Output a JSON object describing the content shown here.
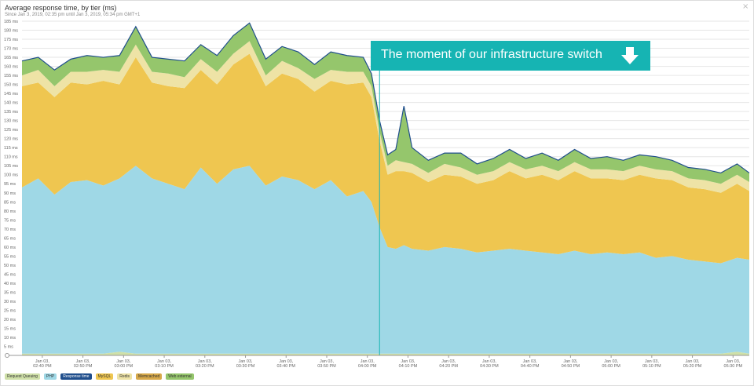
{
  "header": {
    "title": "Average response time, by tier (ms)",
    "subtitle": "Since Jan 3, 2019, 02:35 pm until Jan 3, 2019, 05:34 pm GMT+1",
    "close_glyph": "×"
  },
  "annotation": {
    "text": "The moment of our infrastructure switch",
    "arrow_icon": "arrow-down-icon",
    "color": "#16b4b3"
  },
  "colors": {
    "request_queuing": "#cfe0a8",
    "php": "#9fd8e6",
    "mysql": "#efc650",
    "redis": "#eee3a6",
    "web_external": "#95c66c",
    "response_line": "#1f4e8c",
    "switch_line": "#16b4b3"
  },
  "legend": [
    {
      "label": "Request Queuing",
      "color": "#cfe0a8"
    },
    {
      "label": "PHP",
      "color": "#9fd8e6"
    },
    {
      "label": "Response time",
      "color": "#1f4e8c"
    },
    {
      "label": "MySQL",
      "color": "#efc650"
    },
    {
      "label": "Redis",
      "color": "#eee3a6"
    },
    {
      "label": "Memcached",
      "color": "#d7a94a"
    },
    {
      "label": "Web external",
      "color": "#95c66c"
    }
  ],
  "chart_data": {
    "type": "area",
    "title": "Average response time, by tier (ms)",
    "ylim": [
      0,
      185
    ],
    "y_ticks": [
      "5 ms",
      "10 ms",
      "15 ms",
      "20 ms",
      "25 ms",
      "30 ms",
      "35 ms",
      "40 ms",
      "45 ms",
      "50 ms",
      "55 ms",
      "60 ms",
      "65 ms",
      "70 ms",
      "75 ms",
      "80 ms",
      "85 ms",
      "90 ms",
      "95 ms",
      "100 ms",
      "105 ms",
      "110 ms",
      "115 ms",
      "120 ms",
      "125 ms",
      "130 ms",
      "135 ms",
      "140 ms",
      "145 ms",
      "150 ms",
      "155 ms",
      "160 ms",
      "165 ms",
      "170 ms",
      "175 ms",
      "180 ms",
      "185 ms"
    ],
    "y_tick_values": [
      5,
      10,
      15,
      20,
      25,
      30,
      35,
      40,
      45,
      50,
      55,
      60,
      65,
      70,
      75,
      80,
      85,
      90,
      95,
      100,
      105,
      110,
      115,
      120,
      125,
      130,
      135,
      140,
      145,
      150,
      155,
      160,
      165,
      170,
      175,
      180,
      185
    ],
    "x_ticks": [
      {
        "line1": "Jan 03,",
        "line2": "02:40 PM",
        "t": 5
      },
      {
        "line1": "Jan 03,",
        "line2": "02:50 PM",
        "t": 15
      },
      {
        "line1": "Jan 03,",
        "line2": "03:00 PM",
        "t": 25
      },
      {
        "line1": "Jan 03,",
        "line2": "03:10 PM",
        "t": 35
      },
      {
        "line1": "Jan 03,",
        "line2": "03:20 PM",
        "t": 45
      },
      {
        "line1": "Jan 03,",
        "line2": "03:30 PM",
        "t": 55
      },
      {
        "line1": "Jan 03,",
        "line2": "03:40 PM",
        "t": 65
      },
      {
        "line1": "Jan 03,",
        "line2": "03:50 PM",
        "t": 75
      },
      {
        "line1": "Jan 03,",
        "line2": "04:00 PM",
        "t": 85
      },
      {
        "line1": "Jan 03,",
        "line2": "04:10 PM",
        "t": 95
      },
      {
        "line1": "Jan 03,",
        "line2": "04:20 PM",
        "t": 105
      },
      {
        "line1": "Jan 03,",
        "line2": "04:30 PM",
        "t": 115
      },
      {
        "line1": "Jan 03,",
        "line2": "04:40 PM",
        "t": 125
      },
      {
        "line1": "Jan 03,",
        "line2": "04:50 PM",
        "t": 135
      },
      {
        "line1": "Jan 03,",
        "line2": "05:00 PM",
        "t": 145
      },
      {
        "line1": "Jan 03,",
        "line2": "05:10 PM",
        "t": 155
      },
      {
        "line1": "Jan 03,",
        "line2": "05:20 PM",
        "t": 165
      },
      {
        "line1": "Jan 03,",
        "line2": "05:30 PM",
        "t": 175
      }
    ],
    "x_domain": [
      0,
      179
    ],
    "switch_t": 88,
    "x": [
      0,
      4,
      8,
      12,
      16,
      20,
      24,
      28,
      32,
      36,
      40,
      44,
      48,
      52,
      56,
      60,
      64,
      68,
      72,
      76,
      80,
      84,
      86,
      88,
      90,
      92,
      94,
      96,
      100,
      104,
      108,
      112,
      116,
      120,
      124,
      128,
      132,
      136,
      140,
      144,
      148,
      152,
      156,
      160,
      164,
      168,
      172,
      176,
      179
    ],
    "series": [
      {
        "name": "Request Queuing",
        "values": [
          1,
          1,
          1,
          1,
          1,
          1,
          2,
          1,
          1,
          1,
          1,
          1,
          1,
          1,
          1,
          1,
          1,
          1,
          1,
          1,
          1,
          1,
          1,
          1,
          1,
          1,
          1,
          1,
          1,
          1,
          1,
          1,
          1,
          1,
          1,
          1,
          1,
          1,
          1,
          1,
          1,
          1,
          1,
          1,
          1,
          1,
          1,
          2,
          1
        ]
      },
      {
        "name": "PHP",
        "values": [
          92,
          97,
          88,
          95,
          96,
          93,
          96,
          104,
          97,
          94,
          91,
          103,
          94,
          102,
          104,
          93,
          98,
          96,
          91,
          96,
          87,
          90,
          84,
          70,
          59,
          58,
          60,
          58,
          57,
          59,
          58,
          56,
          57,
          58,
          57,
          56,
          55,
          57,
          55,
          56,
          55,
          56,
          53,
          54,
          52,
          51,
          50,
          52,
          52
        ]
      },
      {
        "name": "MySQL",
        "values": [
          56,
          53,
          54,
          55,
          53,
          58,
          52,
          60,
          53,
          54,
          56,
          54,
          55,
          58,
          62,
          55,
          57,
          56,
          54,
          55,
          62,
          60,
          58,
          48,
          40,
          43,
          41,
          42,
          38,
          40,
          40,
          38,
          39,
          43,
          40,
          43,
          41,
          44,
          42,
          41,
          41,
          43,
          44,
          42,
          40,
          40,
          39,
          41,
          38
        ]
      },
      {
        "name": "Redis",
        "values": [
          6,
          7,
          6,
          6,
          7,
          6,
          7,
          7,
          6,
          7,
          6,
          6,
          7,
          6,
          7,
          6,
          7,
          6,
          7,
          6,
          7,
          6,
          6,
          5,
          5,
          6,
          5,
          5,
          5,
          6,
          5,
          5,
          5,
          5,
          5,
          5,
          5,
          5,
          5,
          5,
          5,
          5,
          5,
          5,
          5,
          5,
          5,
          5,
          5
        ]
      },
      {
        "name": "Web external",
        "values": [
          8,
          7,
          9,
          7,
          9,
          7,
          9,
          10,
          8,
          8,
          9,
          8,
          9,
          10,
          10,
          9,
          8,
          9,
          8,
          10,
          9,
          8,
          7,
          6,
          6,
          6,
          31,
          9,
          7,
          6,
          8,
          6,
          7,
          7,
          6,
          7,
          6,
          7,
          6,
          7,
          6,
          6,
          7,
          6,
          6,
          6,
          6,
          6,
          5
        ]
      }
    ]
  }
}
